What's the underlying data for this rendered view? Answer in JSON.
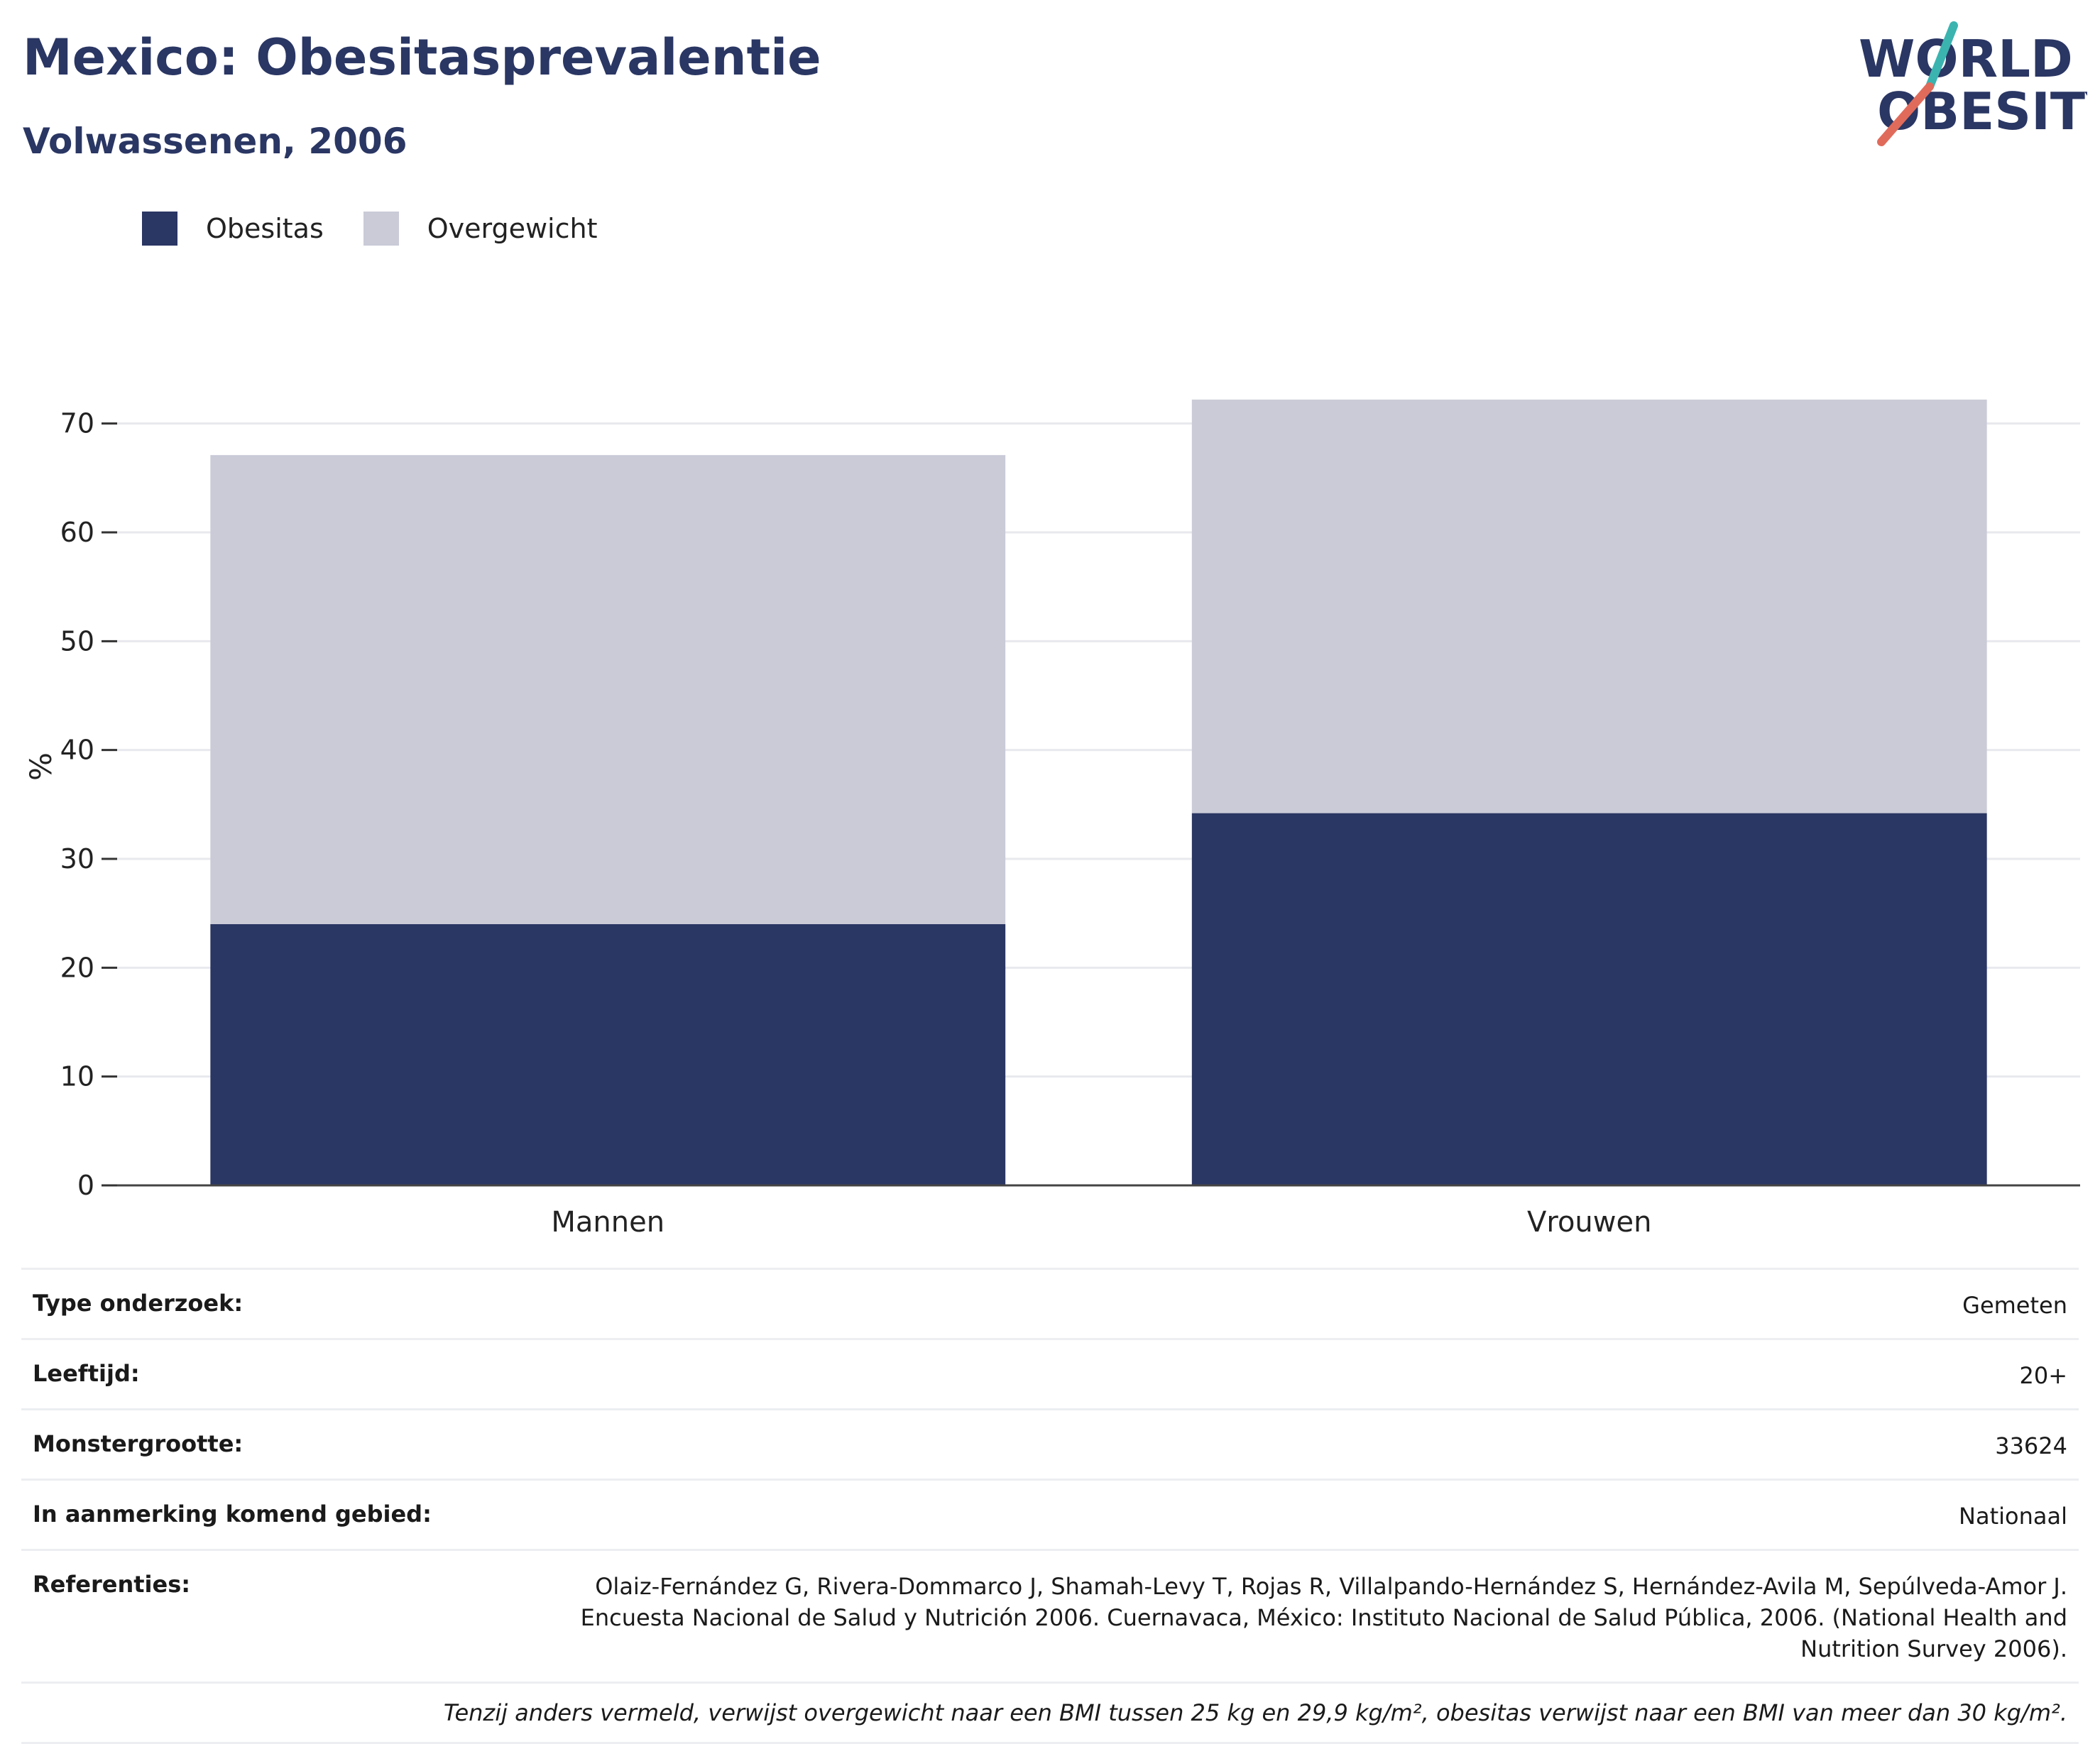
{
  "header": {
    "title": "Mexico: Obesitasprevalentie",
    "subtitle": "Volwassenen, 2006"
  },
  "logo": {
    "line1": "WORLD",
    "line2": "OBESITY",
    "colors": {
      "text": "#2a3663",
      "accent_teal": "#3bb4b0",
      "accent_red": "#e06b5b"
    }
  },
  "legend": [
    {
      "label": "Obesitas",
      "color": "#2a3663"
    },
    {
      "label": "Overgewicht",
      "color": "#cacbd7"
    }
  ],
  "chart_data": {
    "type": "bar",
    "stacked": true,
    "categories": [
      "Mannen",
      "Vrouwen"
    ],
    "series": [
      {
        "name": "Obesitas",
        "values": [
          24.0,
          34.2
        ],
        "color": "#2a3663"
      },
      {
        "name": "Overgewicht",
        "values": [
          43.1,
          38.0
        ],
        "color": "#cacbd7"
      }
    ],
    "ylabel": "%",
    "xlabel": "",
    "ylim": [
      0,
      75
    ],
    "yticks": [
      0,
      10,
      20,
      30,
      40,
      50,
      60,
      70
    ],
    "grid": true,
    "legend_position": "top-left"
  },
  "info": [
    {
      "label": "Type onderzoek:",
      "value": "Gemeten"
    },
    {
      "label": "Leeftijd:",
      "value": "20+"
    },
    {
      "label": "Monstergrootte:",
      "value": "33624"
    },
    {
      "label": "In aanmerking komend gebied:",
      "value": "Nationaal"
    },
    {
      "label": "Referenties:",
      "value": "Olaiz-Fernández G, Rivera-Dommarco J, Shamah-Levy T, Rojas R, Villalpando-Hernández S, Hernández-Avila M, Sepúlveda-Amor J. Encuesta Nacional de Salud y Nutrición 2006. Cuernavaca, México: Instituto Nacional de Salud Pública, 2006. (National Health and Nutrition Survey 2006)."
    }
  ],
  "note": "Tenzij anders vermeld, verwijst overgewicht naar een BMI tussen 25 kg en 29,9 kg/m², obesitas verwijst naar een BMI van meer dan 30 kg/m²."
}
